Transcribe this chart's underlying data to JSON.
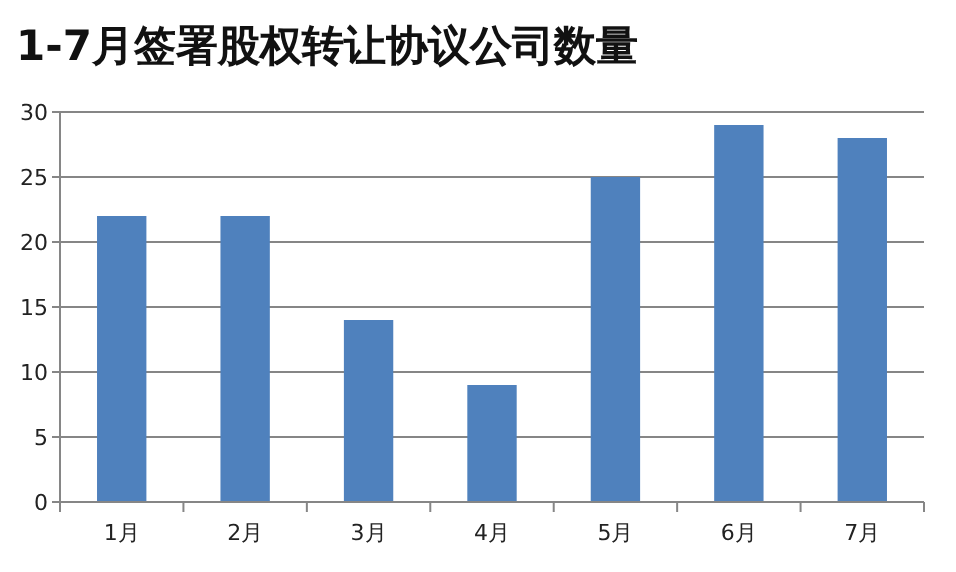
{
  "chart_data": {
    "type": "bar",
    "title": "1-7月签署股权转让协议公司数量",
    "categories": [
      "1月",
      "2月",
      "3月",
      "4月",
      "5月",
      "6月",
      "7月"
    ],
    "values": [
      22,
      22,
      14,
      9,
      25,
      29,
      28
    ],
    "color": "#4f81bd",
    "ylim": [
      0,
      30
    ],
    "yticks": [
      0,
      5,
      10,
      15,
      20,
      25,
      30
    ],
    "grid": "y"
  }
}
